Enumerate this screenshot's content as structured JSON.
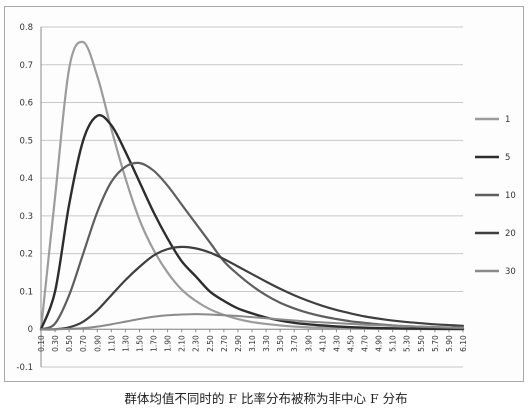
{
  "caption": "群体均值不同时的 F 比率分布被称为非中心 F 分布",
  "chart_data": {
    "type": "line",
    "title": "",
    "xlabel": "",
    "ylabel": "",
    "ylim": [
      -0.1,
      0.8
    ],
    "yticks": [
      "0.8",
      "0.7",
      "0.6",
      "0.5",
      "0.4",
      "0.3",
      "0.2",
      "0.1",
      "0",
      "-0.1"
    ],
    "yticks_values": [
      0.8,
      0.7,
      0.6,
      0.5,
      0.4,
      0.3,
      0.2,
      0.1,
      0,
      -0.1
    ],
    "x_start": 0.1,
    "x_step": 0.2,
    "xticks": [
      "0.10",
      "0.30",
      "0.50",
      "0.70",
      "0.90",
      "1.10",
      "1.30",
      "1.50",
      "1.70",
      "1.90",
      "2.10",
      "2.30",
      "2.50",
      "2.70",
      "2.90",
      "3.10",
      "3.30",
      "3.50",
      "3.70",
      "3.90",
      "4.10",
      "4.30",
      "4.50",
      "4.70",
      "4.90",
      "5.10",
      "5.30",
      "5.50",
      "5.70",
      "5.90",
      "6.10"
    ],
    "grid": true,
    "legend_position": "right",
    "series": [
      {
        "name": "1",
        "color": "#9c9c9c",
        "width": 2.2,
        "values": [
          0.0,
          0.35,
          0.69,
          0.76,
          0.67,
          0.53,
          0.4,
          0.29,
          0.21,
          0.15,
          0.105,
          0.075,
          0.053,
          0.038,
          0.027,
          0.019,
          0.014,
          0.01,
          0.007,
          0.005,
          0.004,
          0.003,
          0.002,
          0.0015,
          0.001,
          0.0008,
          0.0006,
          0.0004,
          0.0003,
          0.0002,
          0.0001
        ]
      },
      {
        "name": "5",
        "color": "#2d2d2d",
        "width": 2.4,
        "values": [
          0.0,
          0.1,
          0.33,
          0.5,
          0.565,
          0.54,
          0.47,
          0.39,
          0.31,
          0.24,
          0.18,
          0.14,
          0.1,
          0.075,
          0.055,
          0.042,
          0.031,
          0.023,
          0.017,
          0.013,
          0.01,
          0.0075,
          0.0055,
          0.004,
          0.003,
          0.0023,
          0.0017,
          0.0013,
          0.001,
          0.0008,
          0.0006
        ]
      },
      {
        "name": "10",
        "color": "#5e5e5e",
        "width": 2.2,
        "values": [
          0.0,
          0.015,
          0.09,
          0.2,
          0.31,
          0.39,
          0.43,
          0.44,
          0.42,
          0.38,
          0.33,
          0.28,
          0.23,
          0.18,
          0.145,
          0.115,
          0.09,
          0.07,
          0.055,
          0.043,
          0.034,
          0.027,
          0.021,
          0.017,
          0.013,
          0.01,
          0.008,
          0.0065,
          0.005,
          0.004,
          0.003
        ]
      },
      {
        "name": "20",
        "color": "#3f3f3f",
        "width": 2.2,
        "values": [
          0.0,
          0.0,
          0.005,
          0.02,
          0.05,
          0.09,
          0.13,
          0.165,
          0.195,
          0.212,
          0.218,
          0.214,
          0.203,
          0.186,
          0.166,
          0.146,
          0.126,
          0.107,
          0.09,
          0.075,
          0.062,
          0.051,
          0.042,
          0.034,
          0.028,
          0.023,
          0.019,
          0.016,
          0.013,
          0.011,
          0.009
        ]
      },
      {
        "name": "30",
        "color": "#8a8a8a",
        "width": 2.0,
        "values": [
          0.0,
          0.0,
          0.001,
          0.003,
          0.007,
          0.013,
          0.02,
          0.027,
          0.033,
          0.037,
          0.039,
          0.04,
          0.039,
          0.037,
          0.035,
          0.032,
          0.029,
          0.026,
          0.023,
          0.02,
          0.018,
          0.016,
          0.014,
          0.012,
          0.011,
          0.009,
          0.008,
          0.007,
          0.006,
          0.005,
          0.004
        ]
      }
    ]
  }
}
